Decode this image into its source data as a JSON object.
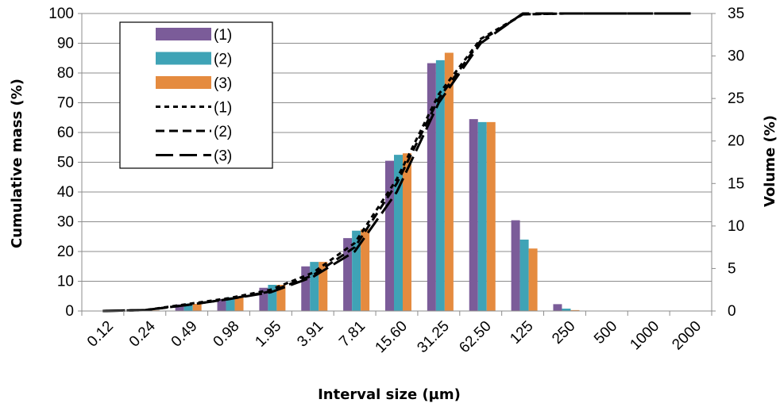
{
  "chart_data": {
    "type": "bar",
    "categories": [
      "0.12",
      "0.24",
      "0.49",
      "0.98",
      "1.95",
      "3.91",
      "7.81",
      "15.60",
      "31.25",
      "62.50",
      "125",
      "250",
      "500",
      "1000",
      "2000"
    ],
    "xlabel": "Interval size (µm)",
    "ylabel_left": "Cumulative mass  (%)",
    "ylabel_right": "Volume (%)",
    "ylim_left": [
      0,
      100
    ],
    "ylim_right": [
      0,
      35
    ],
    "yticks_left": [
      "0",
      "10",
      "20",
      "30",
      "40",
      "50",
      "60",
      "70",
      "80",
      "90",
      "100"
    ],
    "yticks_right": [
      "0",
      "5",
      "10",
      "15",
      "20",
      "25",
      "30",
      "35"
    ],
    "grid": "horizontal",
    "legend_position": "top-left",
    "bar_series": [
      {
        "name": "(1)",
        "axis": "left",
        "color": "#7b5c99",
        "values": [
          0,
          0.2,
          2.2,
          4,
          7.8,
          15,
          24.5,
          50.5,
          83.3,
          64.5,
          30.5,
          2.3,
          0,
          0,
          0
        ]
      },
      {
        "name": "(2)",
        "axis": "left",
        "color": "#3fa3b6",
        "values": [
          0,
          0.2,
          2.5,
          4.6,
          8.8,
          16.5,
          27,
          52.5,
          84.3,
          63.5,
          24,
          0.8,
          0,
          0,
          0
        ]
      },
      {
        "name": "(3)",
        "axis": "left",
        "color": "#e58b3f",
        "values": [
          0,
          0.2,
          2.4,
          4.6,
          8.8,
          16.5,
          27.5,
          53,
          86.8,
          63.5,
          21,
          0.3,
          0,
          0,
          0
        ]
      }
    ],
    "line_series": [
      {
        "name": "(1)",
        "axis": "right",
        "dash": "short",
        "values": [
          0,
          0.1,
          0.8,
          1.5,
          2.5,
          4.5,
          8,
          15.5,
          25.5,
          32,
          34.9,
          35,
          35,
          35,
          35
        ]
      },
      {
        "name": "(2)",
        "axis": "right",
        "dash": "medium",
        "values": [
          0,
          0.1,
          0.7,
          1.4,
          2.3,
          4.2,
          7.5,
          15,
          25,
          31.8,
          34.9,
          35,
          35,
          35,
          35
        ]
      },
      {
        "name": "(3)",
        "axis": "right",
        "dash": "long",
        "values": [
          0,
          0.1,
          0.7,
          1.4,
          2.2,
          4,
          7,
          14,
          24.5,
          31.5,
          35,
          35,
          35,
          35,
          35
        ]
      }
    ]
  }
}
